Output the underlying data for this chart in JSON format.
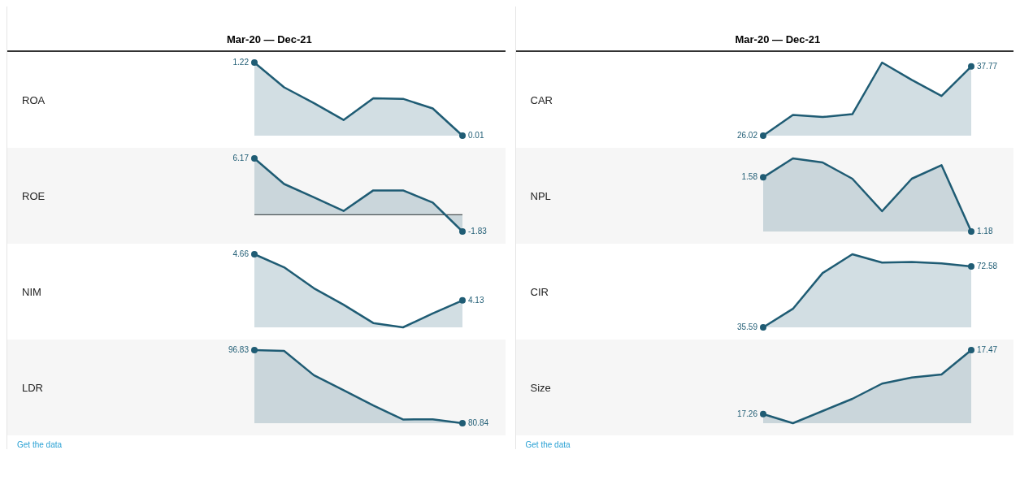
{
  "chart_data": [
    {
      "type": "area",
      "title": "Mar-20 — Dec-21",
      "ylabel": "ROA",
      "categories": [
        null,
        null,
        null,
        null,
        null,
        null,
        null,
        null
      ],
      "values": [
        1.22,
        0.81,
        0.55,
        0.27,
        0.63,
        0.62,
        0.46,
        0.01
      ],
      "value_labels": [
        "1.22",
        null,
        null,
        null,
        null,
        null,
        null,
        "0.01"
      ],
      "color": "#1f5c74",
      "tick_labels": false,
      "legend": false,
      "grid": false
    },
    {
      "type": "area",
      "ylabel": "ROE",
      "categories": [
        null,
        null,
        null,
        null,
        null,
        null,
        null,
        null
      ],
      "values": [
        6.17,
        3.37,
        1.92,
        0.42,
        2.67,
        2.67,
        1.34,
        -1.83
      ],
      "value_labels": [
        "6.17",
        null,
        null,
        null,
        null,
        null,
        null,
        "-1.83"
      ],
      "color": "#1f5c74",
      "tick_labels": false,
      "legend": false,
      "grid": false,
      "ref_lines": [
        {
          "axis": "y",
          "value": 0,
          "color": "#555555"
        }
      ]
    },
    {
      "type": "area",
      "ylabel": "NIM",
      "categories": [
        null,
        null,
        null,
        null,
        null,
        null,
        null,
        null
      ],
      "values": [
        4.66,
        4.51,
        4.27,
        4.08,
        3.87,
        3.82,
        3.98,
        4.13
      ],
      "value_labels": [
        "4.66",
        null,
        null,
        null,
        null,
        null,
        null,
        "4.13"
      ],
      "color": "#1f5c74",
      "tick_labels": false,
      "legend": false,
      "grid": false
    },
    {
      "type": "area",
      "ylabel": "LDR",
      "categories": [
        null,
        null,
        null,
        null,
        null,
        null,
        null,
        null
      ],
      "values": [
        96.83,
        96.66,
        91.35,
        88.05,
        84.71,
        81.65,
        81.7,
        80.84
      ],
      "value_labels": [
        "96.83",
        null,
        null,
        null,
        null,
        null,
        null,
        "80.84"
      ],
      "color": "#1f5c74",
      "tick_labels": false,
      "legend": false,
      "grid": false,
      "annotations": [
        "Get the data"
      ]
    },
    {
      "type": "area",
      "title": "Mar-20 — Dec-21",
      "ylabel": "CAR",
      "categories": [
        null,
        null,
        null,
        null,
        null,
        null,
        null,
        null
      ],
      "values": [
        26.02,
        29.54,
        29.19,
        29.67,
        38.43,
        35.48,
        32.75,
        37.77
      ],
      "value_labels": [
        "26.02",
        null,
        null,
        null,
        null,
        null,
        null,
        "37.77"
      ],
      "color": "#1f5c74",
      "tick_labels": false,
      "legend": false,
      "grid": false
    },
    {
      "type": "area",
      "ylabel": "NPL",
      "categories": [
        null,
        null,
        null,
        null,
        null,
        null,
        null,
        null
      ],
      "values": [
        1.58,
        1.72,
        1.69,
        1.57,
        1.33,
        1.57,
        1.67,
        1.18
      ],
      "value_labels": [
        "1.58",
        null,
        null,
        null,
        null,
        null,
        null,
        "1.18"
      ],
      "color": "#1f5c74",
      "tick_labels": false,
      "legend": false,
      "grid": false
    },
    {
      "type": "area",
      "ylabel": "CIR",
      "categories": [
        null,
        null,
        null,
        null,
        null,
        null,
        null,
        null
      ],
      "values": [
        35.59,
        46.86,
        68.6,
        80.03,
        74.96,
        75.28,
        74.48,
        72.58
      ],
      "value_labels": [
        "35.59",
        null,
        null,
        null,
        null,
        null,
        null,
        "72.58"
      ],
      "color": "#1f5c74",
      "tick_labels": false,
      "legend": false,
      "grid": false
    },
    {
      "type": "area",
      "ylabel": "Size",
      "categories": [
        null,
        null,
        null,
        null,
        null,
        null,
        null,
        null
      ],
      "values": [
        17.26,
        17.23,
        17.27,
        17.31,
        17.36,
        17.38,
        17.39,
        17.47
      ],
      "value_labels": [
        "17.26",
        null,
        null,
        null,
        null,
        null,
        null,
        "17.47"
      ],
      "color": "#1f5c74",
      "tick_labels": false,
      "legend": false,
      "grid": false,
      "annotations": [
        "Get the data"
      ]
    }
  ]
}
